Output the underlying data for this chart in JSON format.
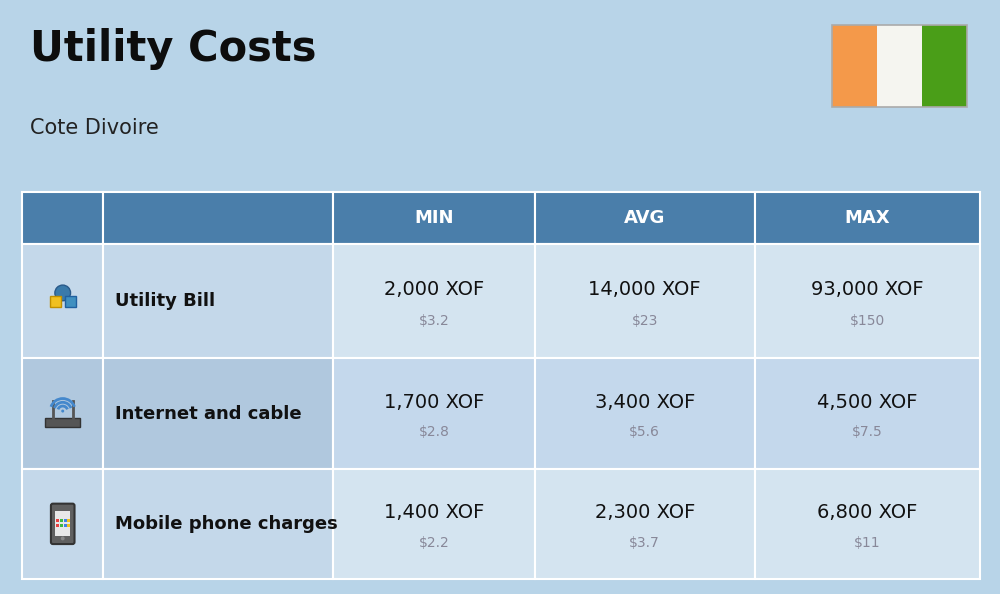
{
  "title": "Utility Costs",
  "subtitle": "Cote Divoire",
  "background_color": "#b8d4e8",
  "header_bg_color": "#4a7eaa",
  "header_text_color": "#ffffff",
  "row_bg_color_odd": "#c4d8ea",
  "row_bg_color_even": "#b0c8de",
  "data_cell_bg_odd": "#d4e4f0",
  "data_cell_bg_even": "#c4d8ec",
  "columns": [
    "MIN",
    "AVG",
    "MAX"
  ],
  "rows": [
    {
      "label": "Utility Bill",
      "min_xof": "2,000 XOF",
      "min_usd": "$3.2",
      "avg_xof": "14,000 XOF",
      "avg_usd": "$23",
      "max_xof": "93,000 XOF",
      "max_usd": "$150"
    },
    {
      "label": "Internet and cable",
      "min_xof": "1,700 XOF",
      "min_usd": "$2.8",
      "avg_xof": "3,400 XOF",
      "avg_usd": "$5.6",
      "max_xof": "4,500 XOF",
      "max_usd": "$7.5"
    },
    {
      "label": "Mobile phone charges",
      "min_xof": "1,400 XOF",
      "min_usd": "$2.2",
      "avg_xof": "2,300 XOF",
      "avg_usd": "$3.7",
      "max_xof": "6,800 XOF",
      "max_usd": "$11"
    }
  ],
  "flag_colors": [
    "#f4994a",
    "#f5f5f0",
    "#4a9e18"
  ],
  "title_fontsize": 30,
  "subtitle_fontsize": 15,
  "header_fontsize": 13,
  "label_fontsize": 13,
  "value_fontsize": 14,
  "usd_fontsize": 10,
  "title_color": "#0d0d0d",
  "subtitle_color": "#222222",
  "label_color": "#111111",
  "value_color": "#111111",
  "usd_color": "#888899",
  "grid_color": "#ffffff"
}
